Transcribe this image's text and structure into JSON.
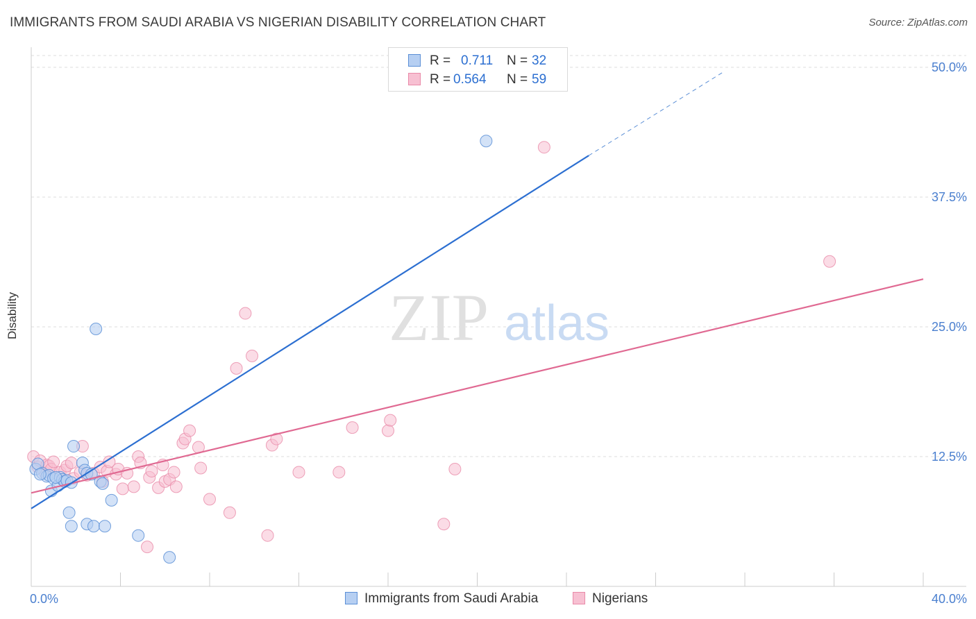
{
  "title": "IMMIGRANTS FROM SAUDI ARABIA VS NIGERIAN DISABILITY CORRELATION CHART",
  "source": "Source: ZipAtlas.com",
  "watermark": {
    "zip": "ZIP",
    "atlas": "atlas"
  },
  "colors": {
    "blue": "#5b8fd6",
    "blue_fill": "#b6cff2",
    "blue_line": "#2c6fd1",
    "pink": "#e98aa8",
    "pink_fill": "#f7c0d2",
    "pink_line": "#e06992",
    "axis_text": "#4a7fcf",
    "grid": "#dddddd"
  },
  "legend": {
    "r_label": "R =",
    "n_label": "N =",
    "series1": {
      "r": "0.711",
      "n": "32"
    },
    "series2": {
      "r": "0.564",
      "n": "59"
    }
  },
  "chart_data": {
    "type": "scatter",
    "title": "IMMIGRANTS FROM SAUDI ARABIA VS NIGERIAN DISABILITY CORRELATION CHART",
    "xlabel": "",
    "ylabel": "Disability",
    "xlim": [
      0,
      40
    ],
    "ylim": [
      0,
      50
    ],
    "x_tick_labels": [
      "0.0%",
      "40.0%"
    ],
    "y_ticks": [
      12.5,
      25.0,
      37.5,
      50.0
    ],
    "y_tick_labels": [
      "12.5%",
      "25.0%",
      "37.5%",
      "50.0%"
    ],
    "series": [
      {
        "name": "Immigrants from Saudi Arabia",
        "color": "blue",
        "trend": {
          "x0": 0,
          "y0": 7.5,
          "x1": 25,
          "y1": 41.5,
          "dash_to_x": 31,
          "dash_to_y": 49.5
        },
        "points": [
          [
            0.2,
            11.3
          ],
          [
            0.3,
            11.8
          ],
          [
            0.5,
            10.9
          ],
          [
            0.7,
            10.6
          ],
          [
            0.8,
            10.7
          ],
          [
            0.9,
            9.2
          ],
          [
            1.0,
            10.4
          ],
          [
            1.2,
            9.7
          ],
          [
            1.3,
            10.5
          ],
          [
            1.4,
            10.3
          ],
          [
            1.5,
            10.1
          ],
          [
            1.6,
            10.2
          ],
          [
            1.7,
            7.1
          ],
          [
            1.8,
            10.0
          ],
          [
            1.8,
            5.8
          ],
          [
            1.9,
            13.5
          ],
          [
            2.3,
            11.9
          ],
          [
            2.4,
            11.2
          ],
          [
            2.5,
            10.9
          ],
          [
            2.5,
            6.0
          ],
          [
            2.8,
            5.8
          ],
          [
            2.9,
            24.8
          ],
          [
            3.1,
            10.1
          ],
          [
            3.2,
            9.9
          ],
          [
            3.3,
            5.8
          ],
          [
            3.6,
            8.3
          ],
          [
            4.8,
            4.9
          ],
          [
            6.2,
            2.8
          ],
          [
            20.4,
            42.9
          ],
          [
            0.4,
            10.8
          ],
          [
            1.1,
            10.5
          ],
          [
            2.7,
            10.8
          ]
        ]
      },
      {
        "name": "Nigerians",
        "color": "pink",
        "trend": {
          "x0": 0,
          "y0": 9.0,
          "x1": 40,
          "y1": 29.6
        },
        "points": [
          [
            0.1,
            12.5
          ],
          [
            0.3,
            11.5
          ],
          [
            0.4,
            12.1
          ],
          [
            0.6,
            11.0
          ],
          [
            0.7,
            11.7
          ],
          [
            0.8,
            11.6
          ],
          [
            0.9,
            11.3
          ],
          [
            1.0,
            12.0
          ],
          [
            1.3,
            11.0
          ],
          [
            1.5,
            11.2
          ],
          [
            1.6,
            11.6
          ],
          [
            1.8,
            11.9
          ],
          [
            1.9,
            10.4
          ],
          [
            2.2,
            11.0
          ],
          [
            2.3,
            13.5
          ],
          [
            2.5,
            10.7
          ],
          [
            2.8,
            10.9
          ],
          [
            3.1,
            11.5
          ],
          [
            3.2,
            10.1
          ],
          [
            3.4,
            11.1
          ],
          [
            3.5,
            12.0
          ],
          [
            3.8,
            10.8
          ],
          [
            3.9,
            11.3
          ],
          [
            4.1,
            9.4
          ],
          [
            4.3,
            10.9
          ],
          [
            4.6,
            9.6
          ],
          [
            4.8,
            12.5
          ],
          [
            4.9,
            11.9
          ],
          [
            5.2,
            3.8
          ],
          [
            5.3,
            10.5
          ],
          [
            5.4,
            11.1
          ],
          [
            5.7,
            9.5
          ],
          [
            5.9,
            11.7
          ],
          [
            6.0,
            10.1
          ],
          [
            6.2,
            10.3
          ],
          [
            6.4,
            11.0
          ],
          [
            6.5,
            9.6
          ],
          [
            6.8,
            13.8
          ],
          [
            6.9,
            14.2
          ],
          [
            7.1,
            15.0
          ],
          [
            7.5,
            13.4
          ],
          [
            7.6,
            11.4
          ],
          [
            8.0,
            8.4
          ],
          [
            8.9,
            7.1
          ],
          [
            9.2,
            21.0
          ],
          [
            9.6,
            26.3
          ],
          [
            9.9,
            22.2
          ],
          [
            10.6,
            4.9
          ],
          [
            10.8,
            13.6
          ],
          [
            11.0,
            14.2
          ],
          [
            12.0,
            11.0
          ],
          [
            13.8,
            11.0
          ],
          [
            14.4,
            15.3
          ],
          [
            16.0,
            15.0
          ],
          [
            16.1,
            16.0
          ],
          [
            18.5,
            6.0
          ],
          [
            19.0,
            11.3
          ],
          [
            23.0,
            42.3
          ],
          [
            35.8,
            31.3
          ]
        ]
      }
    ]
  },
  "bottom_legend": {
    "series1": "Immigrants from Saudi Arabia",
    "series2": "Nigerians"
  }
}
